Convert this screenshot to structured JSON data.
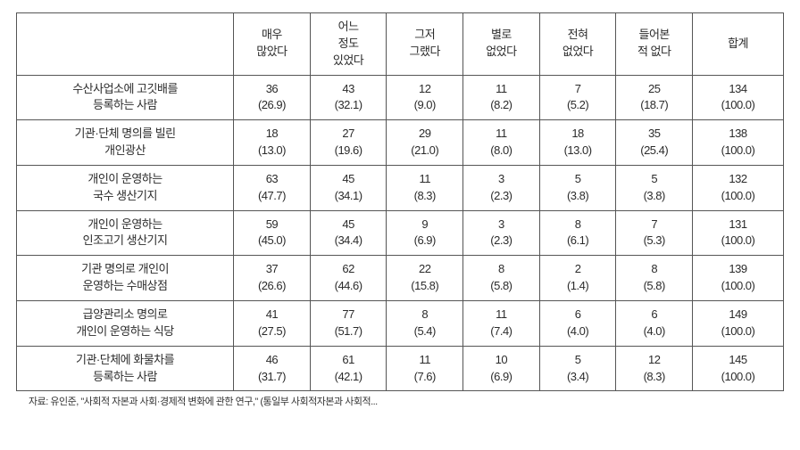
{
  "columns": [
    "매우<br>많았다",
    "어느<br>정도<br>있었다",
    "그저<br>그랬다",
    "별로<br>없었다",
    "전혀<br>없었다",
    "들어본<br>적 없다",
    "합계"
  ],
  "rows": [
    {
      "label": "수산사업소에 고깃배를<br>등록하는 사람",
      "cells": [
        {
          "n": "36",
          "p": "(26.9)"
        },
        {
          "n": "43",
          "p": "(32.1)"
        },
        {
          "n": "12",
          "p": "(9.0)"
        },
        {
          "n": "11",
          "p": "(8.2)"
        },
        {
          "n": "7",
          "p": "(5.2)"
        },
        {
          "n": "25",
          "p": "(18.7)"
        },
        {
          "n": "134",
          "p": "(100.0)"
        }
      ]
    },
    {
      "label": "기관·단체 명의를 빌린<br>개인광산",
      "cells": [
        {
          "n": "18",
          "p": "(13.0)"
        },
        {
          "n": "27",
          "p": "(19.6)"
        },
        {
          "n": "29",
          "p": "(21.0)"
        },
        {
          "n": "11",
          "p": "(8.0)"
        },
        {
          "n": "18",
          "p": "(13.0)"
        },
        {
          "n": "35",
          "p": "(25.4)"
        },
        {
          "n": "138",
          "p": "(100.0)"
        }
      ]
    },
    {
      "label": "개인이 운영하는<br>국수 생산기지",
      "cells": [
        {
          "n": "63",
          "p": "(47.7)"
        },
        {
          "n": "45",
          "p": "(34.1)"
        },
        {
          "n": "11",
          "p": "(8.3)"
        },
        {
          "n": "3",
          "p": "(2.3)"
        },
        {
          "n": "5",
          "p": "(3.8)"
        },
        {
          "n": "5",
          "p": "(3.8)"
        },
        {
          "n": "132",
          "p": "(100.0)"
        }
      ]
    },
    {
      "label": "개인이 운영하는<br>인조고기 생산기지",
      "cells": [
        {
          "n": "59",
          "p": "(45.0)"
        },
        {
          "n": "45",
          "p": "(34.4)"
        },
        {
          "n": "9",
          "p": "(6.9)"
        },
        {
          "n": "3",
          "p": "(2.3)"
        },
        {
          "n": "8",
          "p": "(6.1)"
        },
        {
          "n": "7",
          "p": "(5.3)"
        },
        {
          "n": "131",
          "p": "(100.0)"
        }
      ]
    },
    {
      "label": "기관 명의로 개인이<br>운영하는 수매상점",
      "cells": [
        {
          "n": "37",
          "p": "(26.6)"
        },
        {
          "n": "62",
          "p": "(44.6)"
        },
        {
          "n": "22",
          "p": "(15.8)"
        },
        {
          "n": "8",
          "p": "(5.8)"
        },
        {
          "n": "2",
          "p": "(1.4)"
        },
        {
          "n": "8",
          "p": "(5.8)"
        },
        {
          "n": "139",
          "p": "(100.0)"
        }
      ]
    },
    {
      "label": "급양관리소 명의로<br>개인이 운영하는 식당",
      "cells": [
        {
          "n": "41",
          "p": "(27.5)"
        },
        {
          "n": "77",
          "p": "(51.7)"
        },
        {
          "n": "8",
          "p": "(5.4)"
        },
        {
          "n": "11",
          "p": "(7.4)"
        },
        {
          "n": "6",
          "p": "(4.0)"
        },
        {
          "n": "6",
          "p": "(4.0)"
        },
        {
          "n": "149",
          "p": "(100.0)"
        }
      ]
    },
    {
      "label": "기관·단체에 화물차를<br>등록하는 사람",
      "cells": [
        {
          "n": "46",
          "p": "(31.7)"
        },
        {
          "n": "61",
          "p": "(42.1)"
        },
        {
          "n": "11",
          "p": "(7.6)"
        },
        {
          "n": "10",
          "p": "(6.9)"
        },
        {
          "n": "5",
          "p": "(3.4)"
        },
        {
          "n": "12",
          "p": "(8.3)"
        },
        {
          "n": "145",
          "p": "(100.0)"
        }
      ]
    }
  ],
  "footnote": "자료: 유인준, \"사회적 자본과 사회·경제적 변화에 관한 연구,\" (통일부 사회적자본과 사회적..."
}
